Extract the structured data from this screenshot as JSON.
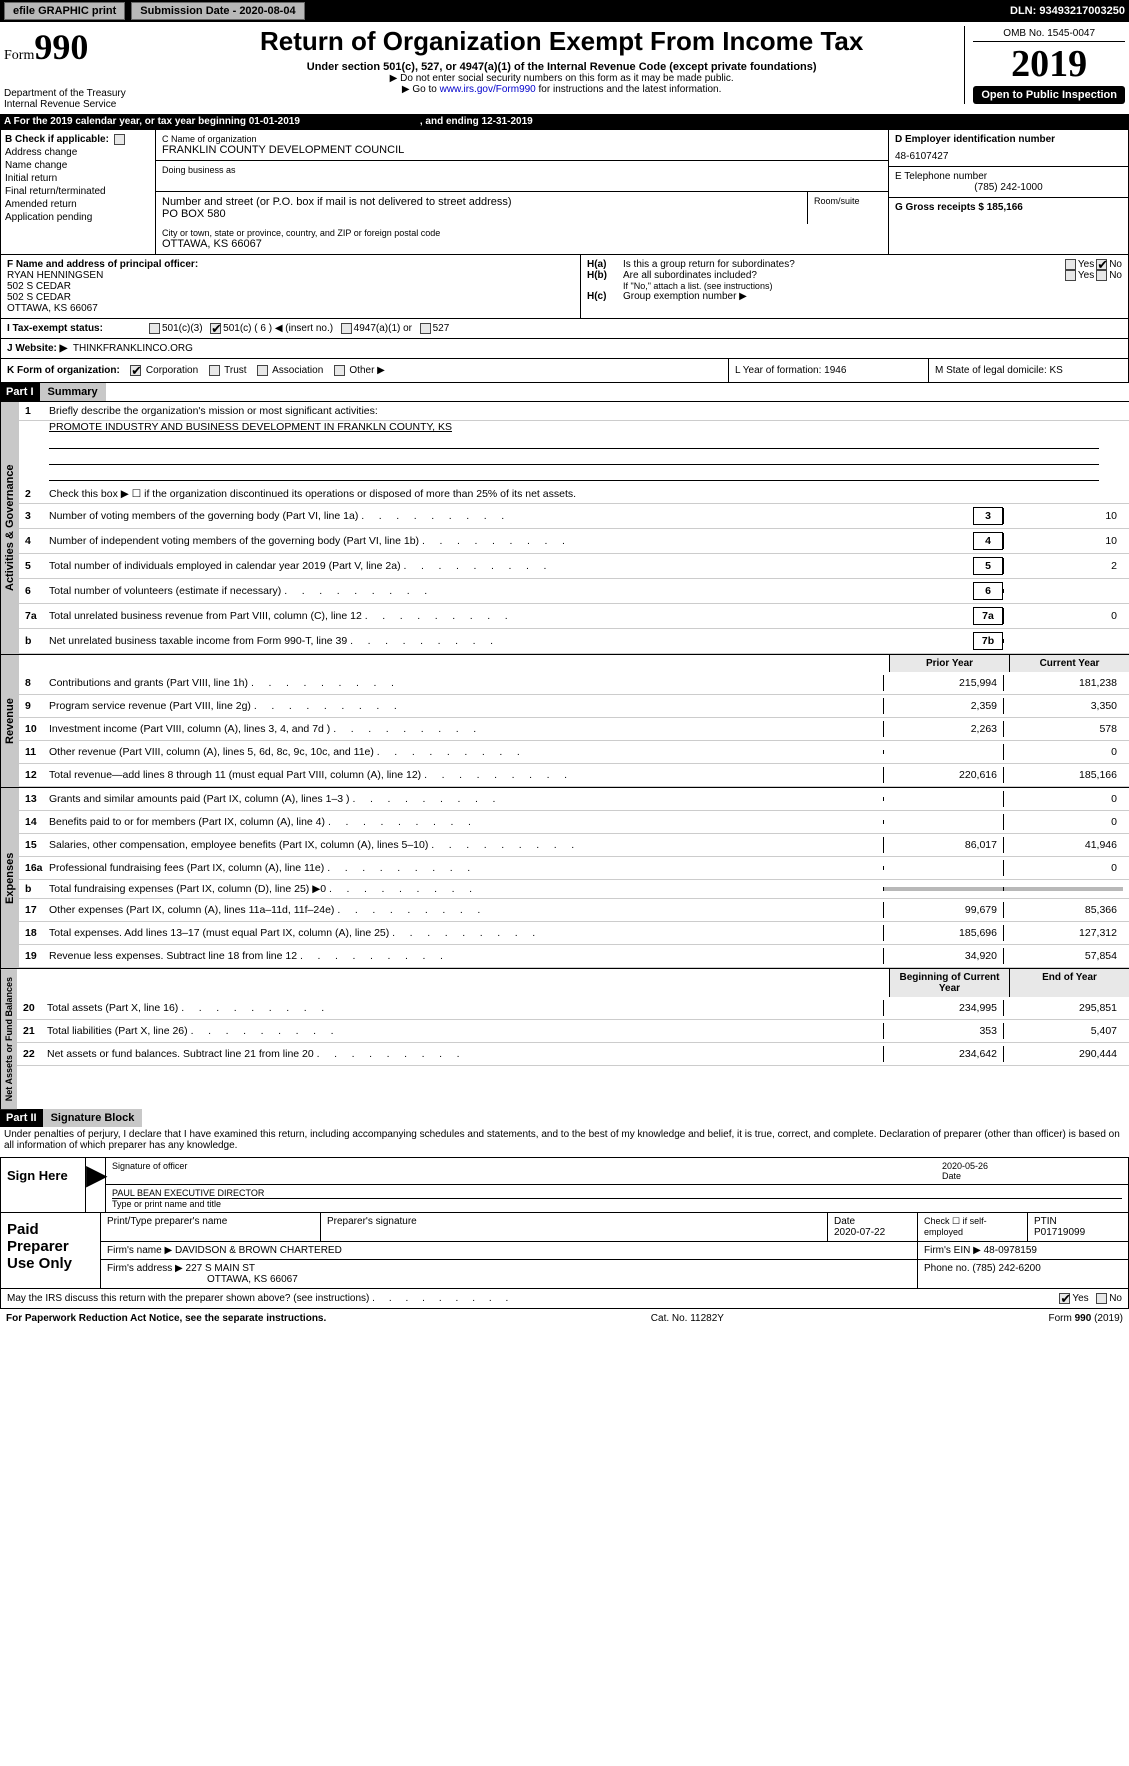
{
  "colors": {
    "black": "#000000",
    "grey_bg": "#c8c8c8",
    "grey_btn": "#b8b8b8",
    "grey_cell": "#b8b8b8",
    "link": "#0000cc"
  },
  "topbar": {
    "efile_label": "efile GRAPHIC print",
    "submission_label": "Submission Date - 2020-08-04",
    "dln_label": "DLN: 93493217003250"
  },
  "header": {
    "form_prefix": "Form",
    "form_number": "990",
    "title": "Return of Organization Exempt From Income Tax",
    "subtitle": "Under section 501(c), 527, or 4947(a)(1) of the Internal Revenue Code (except private foundations)",
    "note1": "▶ Do not enter social security numbers on this form as it may be made public.",
    "note2_prefix": "▶ Go to ",
    "note2_link": "www.irs.gov/Form990",
    "note2_suffix": " for instructions and the latest information.",
    "dept": "Department of the Treasury",
    "irs": "Internal Revenue Service",
    "omb": "OMB No. 1545-0047",
    "year": "2019",
    "open": "Open to Public Inspection"
  },
  "row_a": {
    "label": "A   For the 2019 calendar year, or tax year beginning 01-01-2019",
    "mid": ", and ending 12-31-2019"
  },
  "section_b": {
    "check_label": "B Check if applicable:",
    "checks": [
      "Address change",
      "Name change",
      "Initial return",
      "Final return/terminated",
      "Amended return",
      "Application pending"
    ],
    "c_label": "C Name of organization",
    "c_value": "FRANKLIN COUNTY DEVELOPMENT COUNCIL",
    "dba_label": "Doing business as",
    "addr_label": "Number and street (or P.O. box if mail is not delivered to street address)",
    "addr_value": "PO BOX 580",
    "room_label": "Room/suite",
    "city_label": "City or town, state or province, country, and ZIP or foreign postal code",
    "city_value": "OTTAWA, KS  66067",
    "d_label": "D Employer identification number",
    "d_value": "48-6107427",
    "e_label": "E Telephone number",
    "e_value": "(785) 242-1000",
    "g_label": "G Gross receipts $ 185,166"
  },
  "section_fg": {
    "f_label": "F  Name and address of principal officer:",
    "f_name": "RYAN HENNINGSEN",
    "f_addr1": "502 S CEDAR",
    "f_addr2": "502 S CEDAR",
    "f_city": "OTTAWA, KS  66067",
    "ha_label": "H(a)",
    "ha_text": "Is this a group return for subordinates?",
    "hb_label": "H(b)",
    "hb_text": "Are all subordinates included?",
    "hb_note": "If \"No,\" attach a list. (see instructions)",
    "hc_label": "H(c)",
    "hc_text": "Group exemption number ▶",
    "yes": "Yes",
    "no": "No"
  },
  "tax_status": {
    "label": "I    Tax-exempt status:",
    "opts": [
      "501(c)(3)",
      "501(c) ( 6 ) ◀ (insert no.)",
      "4947(a)(1) or",
      "527"
    ]
  },
  "website": {
    "label": "J    Website: ▶",
    "value": "THINKFRANKLINCO.ORG"
  },
  "k_row": {
    "label": "K Form of organization:",
    "opts": [
      "Corporation",
      "Trust",
      "Association",
      "Other ▶"
    ],
    "l_label": "L Year of formation: 1946",
    "m_label": "M State of legal domicile: KS"
  },
  "part1": {
    "header": "Part I",
    "title": "Summary",
    "q1": "Briefly describe the organization's mission or most significant activities:",
    "q1_ans": "PROMOTE INDUSTRY AND BUSINESS DEVELOPMENT IN FRANKLN COUNTY, KS",
    "q2": "Check this box ▶ ☐  if the organization discontinued its operations or disposed of more than 25% of its net assets.",
    "lines_ag": [
      {
        "n": "3",
        "d": "Number of voting members of the governing body (Part VI, line 1a)",
        "box": "3",
        "v": "10"
      },
      {
        "n": "4",
        "d": "Number of independent voting members of the governing body (Part VI, line 1b)",
        "box": "4",
        "v": "10"
      },
      {
        "n": "5",
        "d": "Total number of individuals employed in calendar year 2019 (Part V, line 2a)",
        "box": "5",
        "v": "2"
      },
      {
        "n": "6",
        "d": "Total number of volunteers (estimate if necessary)",
        "box": "6",
        "v": ""
      },
      {
        "n": "7a",
        "d": "Total unrelated business revenue from Part VIII, column (C), line 12",
        "box": "7a",
        "v": "0"
      },
      {
        "n": "b",
        "d": "Net unrelated business taxable income from Form 990-T, line 39",
        "box": "7b",
        "v": ""
      }
    ],
    "col_prior": "Prior Year",
    "col_current": "Current Year",
    "revenue_lines": [
      {
        "n": "8",
        "d": "Contributions and grants (Part VIII, line 1h)",
        "p": "215,994",
        "c": "181,238"
      },
      {
        "n": "9",
        "d": "Program service revenue (Part VIII, line 2g)",
        "p": "2,359",
        "c": "3,350"
      },
      {
        "n": "10",
        "d": "Investment income (Part VIII, column (A), lines 3, 4, and 7d )",
        "p": "2,263",
        "c": "578"
      },
      {
        "n": "11",
        "d": "Other revenue (Part VIII, column (A), lines 5, 6d, 8c, 9c, 10c, and 11e)",
        "p": "",
        "c": "0"
      },
      {
        "n": "12",
        "d": "Total revenue—add lines 8 through 11 (must equal Part VIII, column (A), line 12)",
        "p": "220,616",
        "c": "185,166"
      }
    ],
    "expense_lines": [
      {
        "n": "13",
        "d": "Grants and similar amounts paid (Part IX, column (A), lines 1–3 )",
        "p": "",
        "c": "0"
      },
      {
        "n": "14",
        "d": "Benefits paid to or for members (Part IX, column (A), line 4)",
        "p": "",
        "c": "0"
      },
      {
        "n": "15",
        "d": "Salaries, other compensation, employee benefits (Part IX, column (A), lines 5–10)",
        "p": "86,017",
        "c": "41,946"
      },
      {
        "n": "16a",
        "d": "Professional fundraising fees (Part IX, column (A), line 11e)",
        "p": "",
        "c": "0"
      },
      {
        "n": "b",
        "d": "Total fundraising expenses (Part IX, column (D), line 25) ▶0",
        "p": "grey",
        "c": "grey"
      },
      {
        "n": "17",
        "d": "Other expenses (Part IX, column (A), lines 11a–11d, 11f–24e)",
        "p": "99,679",
        "c": "85,366"
      },
      {
        "n": "18",
        "d": "Total expenses. Add lines 13–17 (must equal Part IX, column (A), line 25)",
        "p": "185,696",
        "c": "127,312"
      },
      {
        "n": "19",
        "d": "Revenue less expenses. Subtract line 18 from line 12",
        "p": "34,920",
        "c": "57,854"
      }
    ],
    "col_begin": "Beginning of Current Year",
    "col_end": "End of Year",
    "net_lines": [
      {
        "n": "20",
        "d": "Total assets (Part X, line 16)",
        "p": "234,995",
        "c": "295,851"
      },
      {
        "n": "21",
        "d": "Total liabilities (Part X, line 26)",
        "p": "353",
        "c": "5,407"
      },
      {
        "n": "22",
        "d": "Net assets or fund balances. Subtract line 21 from line 20",
        "p": "234,642",
        "c": "290,444"
      }
    ],
    "vtab_ag": "Activities & Governance",
    "vtab_rev": "Revenue",
    "vtab_exp": "Expenses",
    "vtab_net": "Net Assets or Fund Balances"
  },
  "part2": {
    "header": "Part II",
    "title": "Signature Block",
    "penalty": "Under penalties of perjury, I declare that I have examined this return, including accompanying schedules and statements, and to the best of my knowledge and belief, it is true, correct, and complete. Declaration of preparer (other than officer) is based on all information of which preparer has any knowledge.",
    "sign_here": "Sign Here",
    "sig_officer": "Signature of officer",
    "sig_date": "2020-05-26",
    "date_label": "Date",
    "name_title": "PAUL BEAN  EXECUTIVE DIRECTOR",
    "name_label": "Type or print name and title",
    "paid_label": "Paid Preparer Use Only",
    "prep_name_label": "Print/Type preparer's name",
    "prep_sig_label": "Preparer's signature",
    "prep_date_label": "Date",
    "prep_date": "2020-07-22",
    "check_if": "Check ☐ if self-employed",
    "ptin_label": "PTIN",
    "ptin": "P01719099",
    "firm_name_label": "Firm's name     ▶",
    "firm_name": "DAVIDSON & BROWN CHARTERED",
    "firm_ein_label": "Firm's EIN ▶",
    "firm_ein": "48-0978159",
    "firm_addr_label": "Firm's address ▶",
    "firm_addr": "227 S MAIN ST",
    "firm_city": "OTTAWA, KS  66067",
    "phone_label": "Phone no.",
    "phone": "(785) 242-6200",
    "discuss": "May the IRS discuss this return with the preparer shown above? (see instructions)",
    "yes": "Yes",
    "no": "No"
  },
  "footer": {
    "left": "For Paperwork Reduction Act Notice, see the separate instructions.",
    "mid": "Cat. No. 11282Y",
    "right": "Form 990 (2019)"
  }
}
